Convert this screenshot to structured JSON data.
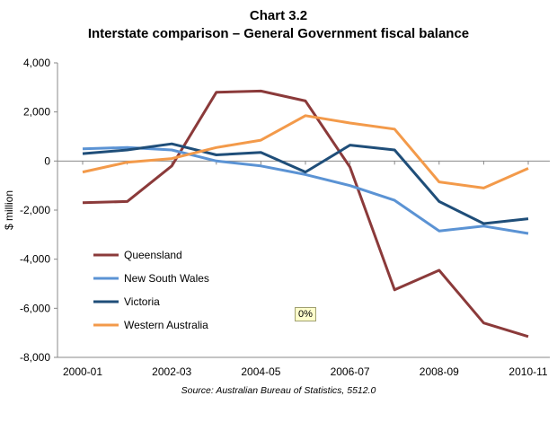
{
  "header": {
    "chart_number": "Chart 3.2",
    "title": "Interstate comparison – General Government fiscal balance"
  },
  "source": "Source: Australian Bureau of Statistics, 5512.0",
  "badge": "0%",
  "chart_data": {
    "type": "line",
    "title": "Interstate comparison – General Government fiscal balance",
    "xlabel": "",
    "ylabel": "$ million",
    "ylim": [
      -8000,
      4000
    ],
    "yticks": [
      4000,
      2000,
      0,
      -2000,
      -4000,
      -6000,
      -8000
    ],
    "ytick_labels": [
      "4,000",
      "2,000",
      "0",
      "-2,000",
      "-4,000",
      "-6,000",
      "-8,000"
    ],
    "categories": [
      "2000-01",
      "2001-02",
      "2002-03",
      "2003-04",
      "2004-05",
      "2005-06",
      "2006-07",
      "2007-08",
      "2008-09",
      "2009-10",
      "2010-11"
    ],
    "xtick_labels": [
      "2000-01",
      "",
      "2002-03",
      "",
      "2004-05",
      "",
      "2006-07",
      "",
      "2008-09",
      "",
      "2010-11"
    ],
    "grid": false,
    "legend_position": "lower-left",
    "series": [
      {
        "name": "Queensland",
        "color": "#8B3A3A",
        "values": [
          -1700,
          -1650,
          -200,
          2800,
          2850,
          2450,
          -250,
          -5250,
          -4450,
          -6600,
          -7150
        ]
      },
      {
        "name": "New South Wales",
        "color": "#5B93D4",
        "values": [
          500,
          550,
          450,
          0,
          -200,
          -550,
          -1000,
          -1600,
          -2850,
          -2650,
          -2950
        ]
      },
      {
        "name": "Victoria",
        "color": "#1F4E79",
        "values": [
          300,
          450,
          700,
          250,
          350,
          -450,
          650,
          450,
          -1650,
          -2550,
          -2350
        ]
      },
      {
        "name": "Western Australia",
        "color": "#F39A4A",
        "values": [
          -450,
          -50,
          100,
          550,
          850,
          1850,
          1550,
          1300,
          -850,
          -1100,
          -300
        ]
      }
    ]
  }
}
